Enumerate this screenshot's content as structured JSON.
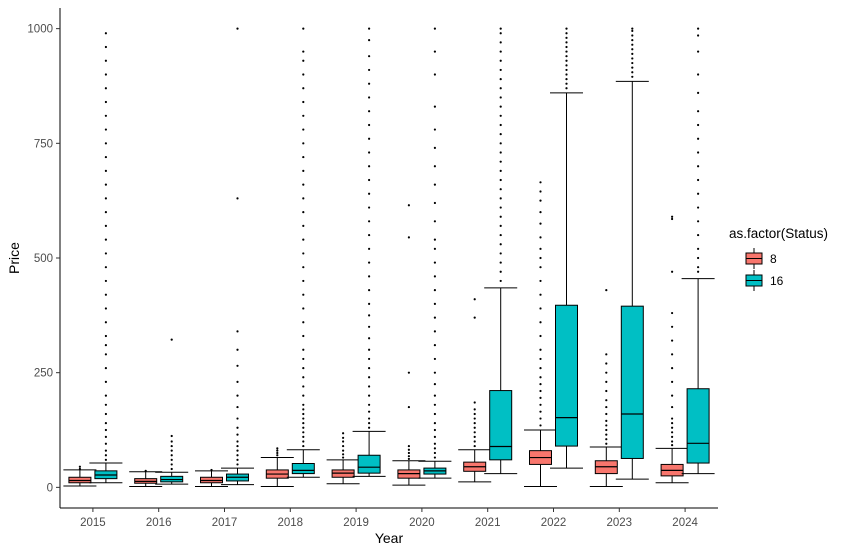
{
  "chart_data": {
    "type": "boxplot",
    "xlabel": "Year",
    "ylabel": "Price",
    "ylim": [
      -45,
      1045
    ],
    "y_ticks": [
      0,
      250,
      500,
      750,
      1000
    ],
    "categories": [
      "2015",
      "2016",
      "2017",
      "2018",
      "2019",
      "2020",
      "2021",
      "2022",
      "2023",
      "2024"
    ],
    "legend": {
      "title": "as.factor(Status)",
      "placement": "right",
      "items": [
        {
          "label": "8",
          "color": "#f8766d"
        },
        {
          "label": "16",
          "color": "#00bfc4"
        }
      ]
    },
    "series": [
      {
        "name": "8",
        "color": "#f8766d",
        "boxes": [
          {
            "year": "2015",
            "min": 3,
            "q1": 10,
            "median": 15,
            "q3": 22,
            "max": 38,
            "outliers": [
              40,
              45
            ]
          },
          {
            "year": "2016",
            "min": 2,
            "q1": 9,
            "median": 13,
            "q3": 19,
            "max": 34,
            "outliers": [
              36
            ]
          },
          {
            "year": "2017",
            "min": 2,
            "q1": 10,
            "median": 15,
            "q3": 22,
            "max": 36,
            "outliers": [
              38
            ]
          },
          {
            "year": "2018",
            "min": 2,
            "q1": 20,
            "median": 29,
            "q3": 38,
            "max": 65,
            "outliers": [
              70,
              75,
              80,
              85
            ]
          },
          {
            "year": "2019",
            "min": 8,
            "q1": 22,
            "median": 31,
            "q3": 38,
            "max": 60,
            "outliers": [
              65,
              72,
              80,
              90,
              100,
              108,
              118
            ]
          },
          {
            "year": "2020",
            "min": 5,
            "q1": 20,
            "median": 30,
            "q3": 38,
            "max": 58,
            "outliers": [
              62,
              68,
              75,
              82,
              90,
              175,
              250,
              545,
              615
            ]
          },
          {
            "year": "2021",
            "min": 12,
            "q1": 35,
            "median": 45,
            "q3": 55,
            "max": 82,
            "outliers": [
              90,
              100,
              110,
              120,
              130,
              140,
              150,
              160,
              170,
              185,
              370,
              410
            ]
          },
          {
            "year": "2022",
            "min": 2,
            "q1": 50,
            "median": 65,
            "q3": 80,
            "max": 125,
            "outliers": [
              135,
              150,
              165,
              180,
              195,
              210,
              225,
              240,
              260,
              280,
              300,
              330,
              360,
              390,
              420,
              450,
              480,
              500,
              520,
              545,
              575,
              600,
              625,
              645,
              665
            ]
          },
          {
            "year": "2023",
            "min": 2,
            "q1": 30,
            "median": 45,
            "q3": 58,
            "max": 88,
            "outliers": [
              95,
              105,
              115,
              125,
              135,
              145,
              160,
              175,
              190,
              210,
              230,
              250,
              270,
              290,
              430
            ]
          },
          {
            "year": "2024",
            "min": 10,
            "q1": 25,
            "median": 37,
            "q3": 50,
            "max": 85,
            "outliers": [
              92,
              100,
              110,
              120,
              130,
              140,
              150,
              175,
              200,
              230,
              260,
              290,
              320,
              350,
              380,
              470,
              585,
              590
            ]
          }
        ]
      },
      {
        "name": "16",
        "color": "#00bfc4",
        "boxes": [
          {
            "year": "2015",
            "min": 10,
            "q1": 19,
            "median": 27,
            "q3": 36,
            "max": 53,
            "outliers": [
              60,
              70,
              80,
              95,
              110,
              125,
              140,
              160,
              180,
              200,
              230,
              260,
              290,
              310,
              330,
              360,
              390,
              420,
              450,
              480,
              510,
              540,
              570,
              600,
              630,
              660,
              690,
              720,
              750,
              780,
              810,
              840,
              870,
              900,
              930,
              960,
              990
            ]
          },
          {
            "year": "2016",
            "min": 7,
            "q1": 12,
            "median": 17,
            "q3": 24,
            "max": 33,
            "outliers": [
              40,
              50,
              60,
              70,
              80,
              90,
              100,
              112,
              322
            ]
          },
          {
            "year": "2017",
            "min": 6,
            "q1": 14,
            "median": 22,
            "q3": 29,
            "max": 42,
            "outliers": [
              50,
              60,
              70,
              80,
              90,
              100,
              115,
              130,
              150,
              175,
              200,
              230,
              265,
              300,
              340,
              630,
              1000
            ]
          },
          {
            "year": "2018",
            "min": 22,
            "q1": 30,
            "median": 37,
            "q3": 52,
            "max": 82,
            "outliers": [
              90,
              100,
              110,
              120,
              130,
              140,
              150,
              160,
              170,
              180,
              200,
              220,
              240,
              260,
              280,
              300,
              330,
              360,
              390,
              420,
              450,
              480,
              510,
              540,
              570,
              600,
              630,
              660,
              690,
              720,
              750,
              780,
              810,
              840,
              870,
              900,
              930,
              950,
              1000
            ]
          },
          {
            "year": "2019",
            "min": 24,
            "q1": 31,
            "median": 44,
            "q3": 70,
            "max": 122,
            "outliers": [
              130,
              140,
              150,
              165,
              180,
              200,
              220,
              240,
              260,
              280,
              300,
              325,
              350,
              375,
              400,
              430,
              460,
              490,
              520,
              550,
              580,
              610,
              640,
              670,
              700,
              730,
              760,
              790,
              820,
              850,
              880,
              910,
              940,
              975,
              1000
            ]
          },
          {
            "year": "2020",
            "min": 20,
            "q1": 29,
            "median": 36,
            "q3": 42,
            "max": 57,
            "outliers": [
              65,
              75,
              85,
              95,
              110,
              125,
              140,
              160,
              180,
              200,
              225,
              250,
              280,
              310,
              340,
              370,
              400,
              430,
              460,
              490,
              520,
              540,
              580,
              620,
              660,
              700,
              740,
              780,
              830,
              900,
              950,
              1000
            ]
          },
          {
            "year": "2021",
            "min": 30,
            "q1": 60,
            "median": 89,
            "q3": 211,
            "max": 435,
            "outliers": [
              450,
              470,
              490,
              510,
              530,
              550,
              570,
              590,
              610,
              630,
              650,
              670,
              690,
              710,
              730,
              750,
              770,
              790,
              810,
              830,
              850,
              870,
              890,
              910,
              930,
              950,
              970,
              990,
              1000
            ]
          },
          {
            "year": "2022",
            "min": 42,
            "q1": 90,
            "median": 152,
            "q3": 397,
            "max": 860,
            "outliers": [
              870,
              880,
              890,
              900,
              910,
              920,
              930,
              940,
              950,
              960,
              970,
              980,
              990,
              1000
            ]
          },
          {
            "year": "2023",
            "min": 18,
            "q1": 63,
            "median": 160,
            "q3": 395,
            "max": 885,
            "outliers": [
              895,
              905,
              915,
              925,
              935,
              945,
              955,
              965,
              975,
              985,
              995,
              1000
            ]
          },
          {
            "year": "2024",
            "min": 30,
            "q1": 53,
            "median": 96,
            "q3": 215,
            "max": 455,
            "outliers": [
              470,
              480,
              500,
              520,
              550,
              580,
              610,
              640,
              670,
              700,
              730,
              760,
              790,
              820,
              860,
              900,
              950,
              985,
              1000
            ]
          }
        ]
      }
    ]
  }
}
